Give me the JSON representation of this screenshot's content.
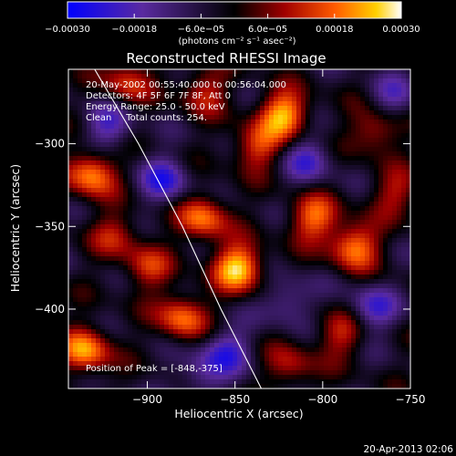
{
  "chart_data": {
    "type": "heatmap",
    "title": "Reconstructed RHESSI Image",
    "xlabel": "Heliocentric X (arcsec)",
    "ylabel": "Heliocentric Y (arcsec)",
    "xlim": [
      -945,
      -750
    ],
    "ylim": [
      -448,
      -255
    ],
    "x_ticks": [
      -900,
      -850,
      -800,
      -750
    ],
    "x_tick_labels": [
      "−900",
      "−850",
      "−800",
      "−750"
    ],
    "y_ticks": [
      -300,
      -350,
      -400
    ],
    "y_tick_labels": [
      "−300",
      "−350",
      "−400"
    ],
    "colorbar": {
      "range": [
        -0.0003,
        0.0003
      ],
      "ticks": [
        -0.0003,
        -0.00018,
        -6e-05,
        6e-05,
        0.00018,
        0.0003
      ],
      "tick_labels": [
        "−0.00030",
        "−0.00018",
        "−6.0e−05",
        "6.0e−05",
        "0.00018",
        "0.00030"
      ],
      "unit_label": "(photons cm⁻² s⁻¹ asec⁻²)",
      "colors": [
        "#0000ff",
        "#5a2aa0",
        "#000000",
        "#a00000",
        "#ff5a00",
        "#ffd000",
        "#ffffff"
      ]
    },
    "annotations": {
      "time_range": "20-May-2002 00:55:40.000 to 00:56:04.000",
      "detectors": "Detectors: 4F 5F 6F 7F 8F, Att 0",
      "energy_range": "Energy Range: 25.0 - 50.0 keV",
      "method_counts": "Clean     Total counts: 254.",
      "peak": "Position of Peak = [-848,-375]"
    },
    "peak_position": [
      -848,
      -375
    ],
    "limb_curve": [
      [
        -930,
        -255
      ],
      [
        -905,
        -300
      ],
      [
        -880,
        -350
      ],
      [
        -858,
        -400
      ],
      [
        -835,
        -448
      ]
    ],
    "bright_sources": [
      {
        "x": -848,
        "y": -375,
        "intensity": 1.0
      },
      {
        "x": -822,
        "y": -282,
        "intensity": 0.9
      },
      {
        "x": -932,
        "y": -318,
        "intensity": 0.85
      },
      {
        "x": -782,
        "y": -362,
        "intensity": 0.8
      },
      {
        "x": -805,
        "y": -345,
        "intensity": 0.7
      },
      {
        "x": -868,
        "y": -345,
        "intensity": 0.75
      },
      {
        "x": -935,
        "y": -425,
        "intensity": 0.85
      },
      {
        "x": -880,
        "y": -405,
        "intensity": 0.75
      },
      {
        "x": -838,
        "y": -302,
        "intensity": 0.6
      },
      {
        "x": -770,
        "y": -292,
        "intensity": 0.55
      },
      {
        "x": -912,
        "y": -262,
        "intensity": 0.55
      },
      {
        "x": -868,
        "y": -268,
        "intensity": 0.5
      },
      {
        "x": -790,
        "y": -415,
        "intensity": 0.5
      },
      {
        "x": -900,
        "y": -375,
        "intensity": 0.5
      },
      {
        "x": -818,
        "y": -435,
        "intensity": 0.45
      },
      {
        "x": -758,
        "y": -330,
        "intensity": 0.45
      },
      {
        "x": -918,
        "y": -355,
        "intensity": 0.45
      }
    ],
    "negative_sources": [
      {
        "x": -890,
        "y": -322,
        "intensity": -0.6
      },
      {
        "x": -808,
        "y": -310,
        "intensity": -0.5
      },
      {
        "x": -772,
        "y": -400,
        "intensity": -0.55
      },
      {
        "x": -855,
        "y": -425,
        "intensity": -0.55
      },
      {
        "x": -922,
        "y": -290,
        "intensity": -0.5
      },
      {
        "x": -820,
        "y": -395,
        "intensity": -0.45
      },
      {
        "x": -760,
        "y": -272,
        "intensity": -0.4
      },
      {
        "x": -870,
        "y": -440,
        "intensity": -0.4
      }
    ]
  },
  "footer": {
    "date": "20-Apr-2013 02:06"
  }
}
